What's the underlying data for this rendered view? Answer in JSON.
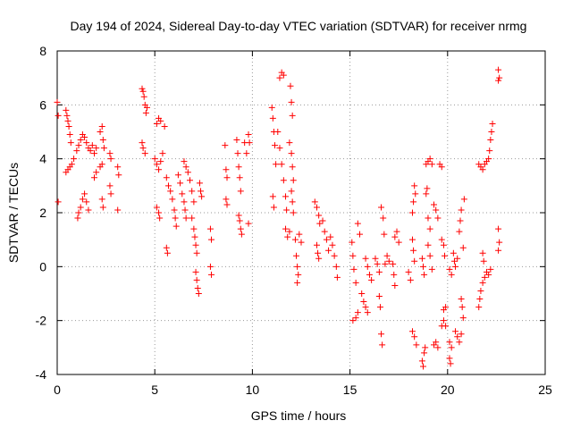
{
  "chart_data": {
    "type": "scatter",
    "title": "Day 194 of 2024, Sidereal Day-to-day VTEC variation (SDTVAR) for receiver nrmg",
    "xlabel": "GPS time / hours",
    "ylabel": "SDTVAR / TECUs",
    "xlim": [
      0,
      25
    ],
    "ylim": [
      -4,
      8
    ],
    "xticks": [
      0,
      5,
      10,
      15,
      20,
      25
    ],
    "yticks": [
      -4,
      -2,
      0,
      2,
      4,
      6,
      8
    ],
    "grid": true,
    "marker": "+",
    "color": "#ff0000",
    "series": [
      {
        "name": "SDTVAR",
        "points": [
          [
            0.0,
            6.1
          ],
          [
            0.05,
            5.6
          ],
          [
            0.05,
            2.4
          ],
          [
            0.45,
            5.8
          ],
          [
            0.5,
            5.6
          ],
          [
            0.55,
            5.4
          ],
          [
            0.6,
            5.2
          ],
          [
            0.65,
            4.9
          ],
          [
            0.7,
            4.6
          ],
          [
            0.45,
            3.5
          ],
          [
            0.55,
            3.6
          ],
          [
            0.65,
            3.7
          ],
          [
            0.75,
            3.8
          ],
          [
            0.85,
            4.0
          ],
          [
            1.0,
            4.3
          ],
          [
            1.1,
            4.5
          ],
          [
            1.2,
            4.7
          ],
          [
            1.3,
            4.9
          ],
          [
            1.4,
            4.8
          ],
          [
            1.5,
            4.6
          ],
          [
            1.05,
            1.8
          ],
          [
            1.1,
            2.0
          ],
          [
            1.2,
            2.2
          ],
          [
            1.3,
            2.5
          ],
          [
            1.4,
            2.7
          ],
          [
            1.5,
            2.4
          ],
          [
            1.6,
            2.1
          ],
          [
            1.6,
            4.4
          ],
          [
            1.7,
            4.3
          ],
          [
            1.8,
            4.5
          ],
          [
            1.9,
            4.2
          ],
          [
            2.0,
            4.4
          ],
          [
            1.9,
            3.3
          ],
          [
            2.0,
            3.5
          ],
          [
            2.2,
            3.7
          ],
          [
            2.3,
            3.8
          ],
          [
            2.2,
            5.0
          ],
          [
            2.3,
            5.2
          ],
          [
            2.35,
            4.7
          ],
          [
            2.4,
            4.4
          ],
          [
            2.3,
            2.5
          ],
          [
            2.35,
            2.2
          ],
          [
            2.7,
            4.2
          ],
          [
            2.75,
            4.0
          ],
          [
            2.7,
            3.0
          ],
          [
            2.75,
            2.7
          ],
          [
            3.1,
            3.7
          ],
          [
            3.15,
            3.4
          ],
          [
            3.1,
            2.1
          ],
          [
            4.35,
            6.6
          ],
          [
            4.4,
            6.5
          ],
          [
            4.45,
            6.3
          ],
          [
            4.5,
            6.0
          ],
          [
            4.55,
            5.7
          ],
          [
            4.6,
            5.9
          ],
          [
            4.35,
            4.6
          ],
          [
            4.4,
            4.4
          ],
          [
            4.5,
            4.2
          ],
          [
            5.0,
            4.0
          ],
          [
            5.1,
            3.8
          ],
          [
            5.2,
            3.6
          ],
          [
            5.3,
            3.9
          ],
          [
            5.4,
            4.2
          ],
          [
            5.1,
            5.3
          ],
          [
            5.2,
            5.5
          ],
          [
            5.3,
            5.4
          ],
          [
            5.5,
            5.2
          ],
          [
            5.1,
            2.2
          ],
          [
            5.2,
            2.0
          ],
          [
            5.25,
            1.8
          ],
          [
            5.6,
            0.7
          ],
          [
            5.65,
            0.5
          ],
          [
            5.6,
            3.3
          ],
          [
            5.7,
            3.0
          ],
          [
            5.8,
            2.8
          ],
          [
            5.9,
            2.5
          ],
          [
            6.0,
            2.1
          ],
          [
            6.05,
            1.8
          ],
          [
            6.1,
            1.5
          ],
          [
            6.2,
            3.4
          ],
          [
            6.3,
            3.1
          ],
          [
            6.4,
            2.7
          ],
          [
            6.5,
            2.4
          ],
          [
            6.55,
            2.1
          ],
          [
            6.6,
            1.8
          ],
          [
            6.5,
            3.9
          ],
          [
            6.6,
            3.7
          ],
          [
            6.7,
            3.5
          ],
          [
            6.8,
            3.2
          ],
          [
            6.9,
            2.8
          ],
          [
            7.0,
            2.4
          ],
          [
            6.9,
            1.8
          ],
          [
            7.0,
            1.4
          ],
          [
            7.05,
            1.1
          ],
          [
            7.1,
            0.8
          ],
          [
            7.15,
            0.5
          ],
          [
            7.1,
            -0.2
          ],
          [
            7.15,
            -0.5
          ],
          [
            7.2,
            -0.8
          ],
          [
            7.25,
            -1.0
          ],
          [
            7.3,
            3.1
          ],
          [
            7.35,
            2.8
          ],
          [
            7.4,
            2.6
          ],
          [
            7.85,
            1.4
          ],
          [
            7.9,
            1.0
          ],
          [
            7.85,
            0.0
          ],
          [
            7.9,
            -0.3
          ],
          [
            8.6,
            4.5
          ],
          [
            8.65,
            3.6
          ],
          [
            8.7,
            3.3
          ],
          [
            8.65,
            2.5
          ],
          [
            8.7,
            2.3
          ],
          [
            9.2,
            4.7
          ],
          [
            9.25,
            4.2
          ],
          [
            9.3,
            3.7
          ],
          [
            9.35,
            3.3
          ],
          [
            9.4,
            2.8
          ],
          [
            9.3,
            1.9
          ],
          [
            9.35,
            1.7
          ],
          [
            9.4,
            1.4
          ],
          [
            9.45,
            1.2
          ],
          [
            9.6,
            4.6
          ],
          [
            9.7,
            4.2
          ],
          [
            9.8,
            4.9
          ],
          [
            9.85,
            4.6
          ],
          [
            9.8,
            1.6
          ],
          [
            11.0,
            5.9
          ],
          [
            11.05,
            5.5
          ],
          [
            11.1,
            5.0
          ],
          [
            11.15,
            4.5
          ],
          [
            11.2,
            3.8
          ],
          [
            11.05,
            2.6
          ],
          [
            11.1,
            2.2
          ],
          [
            11.3,
            5.0
          ],
          [
            11.4,
            4.4
          ],
          [
            11.5,
            3.8
          ],
          [
            11.6,
            3.2
          ],
          [
            11.7,
            2.6
          ],
          [
            11.75,
            2.1
          ],
          [
            11.4,
            7.0
          ],
          [
            11.5,
            7.2
          ],
          [
            11.6,
            7.1
          ],
          [
            11.7,
            1.4
          ],
          [
            11.8,
            1.1
          ],
          [
            11.9,
            1.3
          ],
          [
            11.9,
            4.6
          ],
          [
            12.0,
            4.2
          ],
          [
            12.05,
            3.7
          ],
          [
            12.1,
            3.2
          ],
          [
            11.95,
            6.7
          ],
          [
            12.0,
            6.1
          ],
          [
            12.05,
            5.6
          ],
          [
            12.0,
            2.8
          ],
          [
            12.05,
            2.4
          ],
          [
            12.1,
            2.0
          ],
          [
            12.2,
            1.0
          ],
          [
            12.25,
            0.4
          ],
          [
            12.3,
            0.0
          ],
          [
            12.35,
            -0.3
          ],
          [
            12.3,
            -0.6
          ],
          [
            12.4,
            1.2
          ],
          [
            12.5,
            0.9
          ],
          [
            13.2,
            2.4
          ],
          [
            13.3,
            2.2
          ],
          [
            13.4,
            1.9
          ],
          [
            13.45,
            1.6
          ],
          [
            13.3,
            0.8
          ],
          [
            13.35,
            0.5
          ],
          [
            13.4,
            0.3
          ],
          [
            13.6,
            1.7
          ],
          [
            13.7,
            1.3
          ],
          [
            13.8,
            1.0
          ],
          [
            13.9,
            0.6
          ],
          [
            14.0,
            1.1
          ],
          [
            14.1,
            0.8
          ],
          [
            14.2,
            0.4
          ],
          [
            14.3,
            0.0
          ],
          [
            14.35,
            -0.4
          ],
          [
            15.1,
            0.9
          ],
          [
            15.15,
            0.4
          ],
          [
            15.2,
            -0.1
          ],
          [
            15.3,
            -0.6
          ],
          [
            15.15,
            -2.0
          ],
          [
            15.3,
            -1.9
          ],
          [
            15.4,
            -1.7
          ],
          [
            15.4,
            1.6
          ],
          [
            15.5,
            1.2
          ],
          [
            15.6,
            -1.0
          ],
          [
            15.7,
            -1.3
          ],
          [
            15.8,
            -1.5
          ],
          [
            15.9,
            -1.7
          ],
          [
            15.8,
            0.3
          ],
          [
            15.9,
            0.0
          ],
          [
            16.0,
            -0.3
          ],
          [
            16.1,
            -0.5
          ],
          [
            16.3,
            0.3
          ],
          [
            16.4,
            0.1
          ],
          [
            16.5,
            -0.2
          ],
          [
            16.5,
            -1.1
          ],
          [
            16.55,
            -1.5
          ],
          [
            16.6,
            2.2
          ],
          [
            16.7,
            1.8
          ],
          [
            16.75,
            1.2
          ],
          [
            16.6,
            -2.5
          ],
          [
            16.65,
            -2.9
          ],
          [
            16.8,
            0.1
          ],
          [
            16.9,
            0.4
          ],
          [
            17.0,
            0.2
          ],
          [
            17.2,
            0.1
          ],
          [
            17.25,
            -0.3
          ],
          [
            17.3,
            -0.7
          ],
          [
            17.3,
            1.1
          ],
          [
            17.4,
            1.3
          ],
          [
            17.5,
            0.9
          ],
          [
            18.0,
            -0.2
          ],
          [
            18.1,
            -0.5
          ],
          [
            18.2,
            1.0
          ],
          [
            18.25,
            0.6
          ],
          [
            18.3,
            0.2
          ],
          [
            18.2,
            2.0
          ],
          [
            18.25,
            2.4
          ],
          [
            18.3,
            3.0
          ],
          [
            18.35,
            2.7
          ],
          [
            18.2,
            -2.4
          ],
          [
            18.3,
            -2.6
          ],
          [
            18.4,
            -2.9
          ],
          [
            18.7,
            0.3
          ],
          [
            18.75,
            0.0
          ],
          [
            18.8,
            -0.3
          ],
          [
            18.7,
            -3.5
          ],
          [
            18.75,
            -3.7
          ],
          [
            18.8,
            -3.2
          ],
          [
            18.85,
            -3.0
          ],
          [
            18.9,
            3.8
          ],
          [
            19.0,
            3.9
          ],
          [
            19.1,
            4.0
          ],
          [
            19.2,
            3.8
          ],
          [
            18.9,
            2.7
          ],
          [
            18.95,
            2.9
          ],
          [
            19.0,
            1.8
          ],
          [
            19.1,
            1.4
          ],
          [
            19.0,
            0.8
          ],
          [
            19.1,
            0.4
          ],
          [
            19.2,
            -0.1
          ],
          [
            19.3,
            -2.9
          ],
          [
            19.4,
            -2.8
          ],
          [
            19.5,
            -3.0
          ],
          [
            19.3,
            2.3
          ],
          [
            19.4,
            2.1
          ],
          [
            19.5,
            1.8
          ],
          [
            19.6,
            3.8
          ],
          [
            19.7,
            3.7
          ],
          [
            19.7,
            1.0
          ],
          [
            19.8,
            0.8
          ],
          [
            19.85,
            0.4
          ],
          [
            19.7,
            -2.2
          ],
          [
            19.8,
            -2.0
          ],
          [
            19.9,
            -2.2
          ],
          [
            19.8,
            -1.6
          ],
          [
            19.9,
            -1.5
          ],
          [
            20.1,
            -2.8
          ],
          [
            20.2,
            -3.0
          ],
          [
            20.1,
            -0.1
          ],
          [
            20.2,
            -0.3
          ],
          [
            20.1,
            -3.4
          ],
          [
            20.15,
            -3.6
          ],
          [
            20.3,
            0.5
          ],
          [
            20.35,
            0.2
          ],
          [
            20.4,
            0.0
          ],
          [
            20.5,
            0.3
          ],
          [
            20.4,
            -2.4
          ],
          [
            20.5,
            -2.6
          ],
          [
            20.6,
            -2.8
          ],
          [
            20.7,
            -2.5
          ],
          [
            20.6,
            1.3
          ],
          [
            20.65,
            1.7
          ],
          [
            20.7,
            2.1
          ],
          [
            20.7,
            -1.2
          ],
          [
            20.75,
            -1.5
          ],
          [
            20.8,
            -1.9
          ],
          [
            20.8,
            0.7
          ],
          [
            20.85,
            2.5
          ],
          [
            21.6,
            -1.5
          ],
          [
            21.65,
            -1.2
          ],
          [
            21.7,
            -0.9
          ],
          [
            21.8,
            -0.6
          ],
          [
            21.6,
            3.8
          ],
          [
            21.7,
            3.7
          ],
          [
            21.8,
            3.6
          ],
          [
            21.9,
            3.8
          ],
          [
            21.8,
            0.5
          ],
          [
            21.85,
            0.2
          ],
          [
            21.9,
            -0.4
          ],
          [
            22.0,
            -0.2
          ],
          [
            22.1,
            -0.3
          ],
          [
            22.2,
            -0.1
          ],
          [
            22.0,
            3.9
          ],
          [
            22.1,
            4.0
          ],
          [
            22.15,
            4.3
          ],
          [
            22.2,
            4.7
          ],
          [
            22.25,
            5.0
          ],
          [
            22.3,
            5.3
          ],
          [
            22.6,
            7.3
          ],
          [
            22.65,
            7.0
          ],
          [
            22.6,
            6.9
          ],
          [
            22.6,
            1.4
          ],
          [
            22.65,
            0.9
          ],
          [
            22.6,
            0.6
          ]
        ]
      }
    ]
  }
}
